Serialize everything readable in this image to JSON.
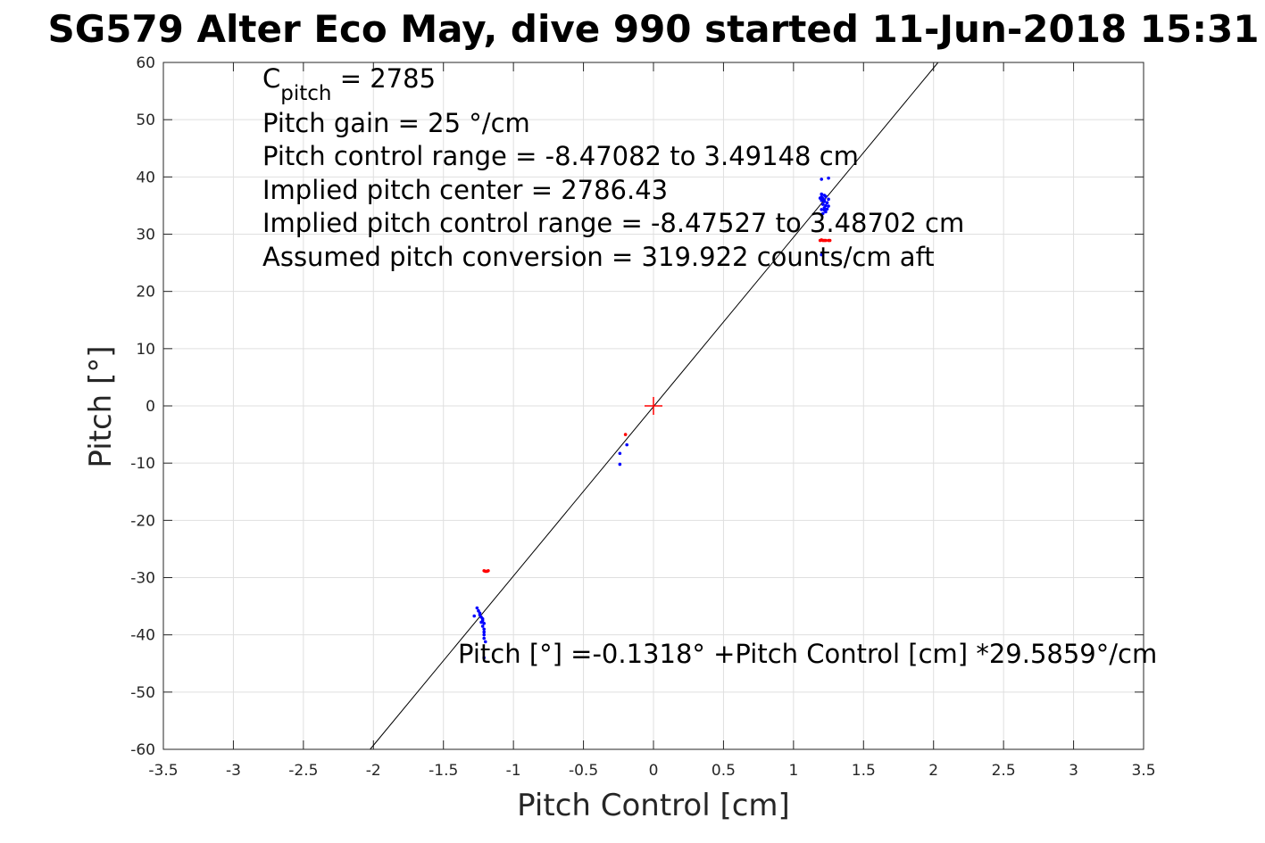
{
  "chart_data": {
    "type": "scatter",
    "title": "SG579 Alter Eco May, dive 990 started 11-Jun-2018 15:31",
    "xlabel": "Pitch Control [cm]",
    "ylabel": "Pitch [°]",
    "xlim": [
      -3.5,
      3.5
    ],
    "ylim": [
      -60,
      60
    ],
    "xticks": [
      -3.5,
      -3,
      -2.5,
      -2,
      -1.5,
      -1,
      -0.5,
      0,
      0.5,
      1,
      1.5,
      2,
      2.5,
      3,
      3.5
    ],
    "xtick_labels": [
      "-3.5",
      "-3",
      "-2.5",
      "-2",
      "-1.5",
      "-1",
      "-0.5",
      "0",
      "0.5",
      "1",
      "1.5",
      "2",
      "2.5",
      "3",
      "3.5"
    ],
    "yticks": [
      60,
      50,
      40,
      30,
      20,
      10,
      0,
      -10,
      -20,
      -30,
      -40,
      -50,
      -60
    ],
    "ytick_labels": [
      "60",
      "50",
      "40",
      "30",
      "20",
      "10",
      "0",
      "-10",
      "-20",
      "-30",
      "-40",
      "-50",
      "-60"
    ],
    "grid": true,
    "annotations": {
      "c_pitch_symbol": "C",
      "c_pitch_subscript": "pitch",
      "c_pitch_value": " = 2785",
      "lines": [
        "Pitch gain = 25 °/cm",
        "Pitch control range = -8.47082 to 3.49148 cm",
        "Implied pitch center = 2786.43",
        "Implied pitch control range = -8.47527 to 3.48702 cm",
        "Assumed pitch conversion = 319.922 counts/cm aft"
      ],
      "fit_equation": "Pitch [°] =-0.1318° +Pitch Control [cm] *29.5859°/cm"
    },
    "fit_line": {
      "intercept": -0.1318,
      "slope": 29.5859,
      "color": "#000000"
    },
    "center_marker": {
      "x": 0,
      "y": 0,
      "color": "#ff0000"
    },
    "series": [
      {
        "color": "#0000ff",
        "points": [
          [
            1.2,
            39.6
          ],
          [
            1.25,
            39.8
          ],
          [
            1.2,
            37
          ],
          [
            1.22,
            36.8
          ],
          [
            1.2,
            36.5
          ],
          [
            1.21,
            36.2
          ],
          [
            1.23,
            36.6
          ],
          [
            1.2,
            35.9
          ],
          [
            1.22,
            35.7
          ],
          [
            1.24,
            35.5
          ],
          [
            1.21,
            35.2
          ],
          [
            1.23,
            35
          ],
          [
            1.22,
            34.6
          ],
          [
            1.25,
            34.9
          ],
          [
            1.2,
            34.3
          ],
          [
            1.22,
            34.2
          ],
          [
            1.24,
            34.4
          ],
          [
            1.23,
            33.9
          ],
          [
            1.21,
            33.6
          ],
          [
            1.22,
            36
          ],
          [
            1.25,
            36.1
          ],
          [
            1.19,
            36.3
          ],
          [
            1.2,
            26.4
          ],
          [
            -0.24,
            -8.3
          ],
          [
            -0.19,
            -6.8
          ],
          [
            -0.24,
            -10.2
          ],
          [
            -1.28,
            -36.7
          ],
          [
            -1.26,
            -35.3
          ],
          [
            -1.25,
            -35.8
          ],
          [
            -1.24,
            -36.2
          ],
          [
            -1.23,
            -36.9
          ],
          [
            -1.22,
            -37.5
          ],
          [
            -1.21,
            -38
          ],
          [
            -1.22,
            -38.5
          ],
          [
            -1.21,
            -39
          ],
          [
            -1.21,
            -39.5
          ],
          [
            -1.21,
            -40
          ],
          [
            -1.21,
            -40.6
          ],
          [
            -1.22,
            -37.2
          ],
          [
            -1.23,
            -37.8
          ],
          [
            -1.24,
            -36.5
          ],
          [
            -1.2,
            -41.2
          ],
          [
            -1.21,
            -44
          ]
        ]
      },
      {
        "color": "#ff0000",
        "points": [
          [
            1.19,
            28.9
          ],
          [
            1.2,
            29
          ],
          [
            1.21,
            28.9
          ],
          [
            1.22,
            28.9
          ],
          [
            1.23,
            28.9
          ],
          [
            1.25,
            28.9
          ],
          [
            1.26,
            28.9
          ],
          [
            -0.2,
            -5
          ],
          [
            -1.21,
            -28.8
          ],
          [
            -1.2,
            -28.9
          ],
          [
            -1.19,
            -28.9
          ],
          [
            -1.18,
            -28.8
          ]
        ]
      }
    ]
  }
}
